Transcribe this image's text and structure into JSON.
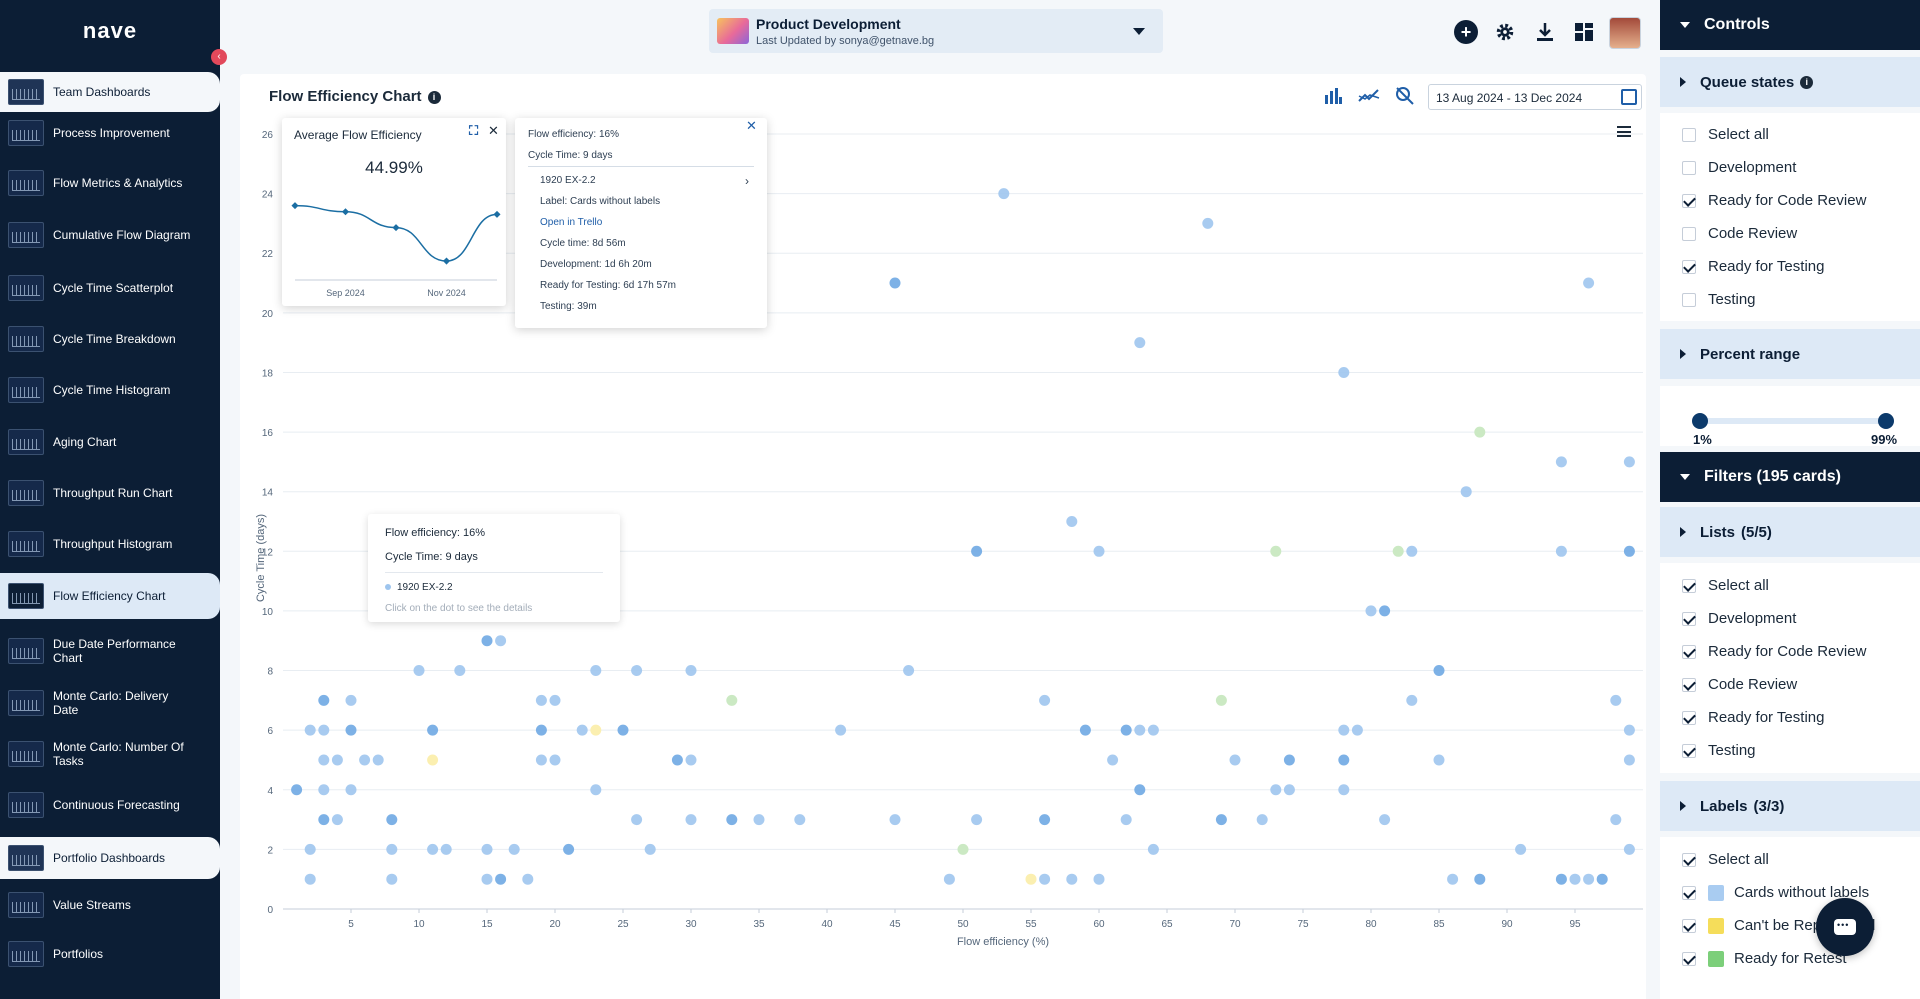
{
  "app": {
    "logo": "nave",
    "collapse_icon": "chevron-left-icon"
  },
  "sidebar": {
    "items": [
      {
        "label": "Team Dashboards",
        "kind": "section"
      },
      {
        "label": "Process Improvement"
      },
      {
        "label": "Flow Metrics & Analytics"
      },
      {
        "label": "Cumulative Flow Diagram"
      },
      {
        "label": "Cycle Time Scatterplot"
      },
      {
        "label": "Cycle Time Breakdown"
      },
      {
        "label": "Cycle Time Histogram"
      },
      {
        "label": "Aging Chart"
      },
      {
        "label": "Throughput Run Chart"
      },
      {
        "label": "Throughput Histogram"
      },
      {
        "label": "Flow Efficiency Chart",
        "kind": "active"
      },
      {
        "label": "Due Date Performance Chart"
      },
      {
        "label": "Monte Carlo: Delivery Date"
      },
      {
        "label": "Monte Carlo: Number Of Tasks"
      },
      {
        "label": "Continuous Forecasting"
      },
      {
        "label": "Portfolio Dashboards",
        "kind": "section"
      },
      {
        "label": "Value Streams"
      },
      {
        "label": "Portfolios"
      }
    ]
  },
  "header": {
    "board_title": "Product Development",
    "board_subtitle": "Last Updated by sonya@getnave.bg",
    "icons": [
      "add-icon",
      "settings-icon",
      "download-icon",
      "dashboard-layout-icon"
    ]
  },
  "main": {
    "title": "Flow Efficiency Chart",
    "date_range": "13 Aug 2024 - 13 Dec 2024",
    "toolbar_icons": [
      "bar-chart-icon",
      "trend-line-icon",
      "zoom-reset-icon",
      "calendar-icon"
    ]
  },
  "avg_popup": {
    "title": "Average Flow Efficiency",
    "value": "44.99%",
    "x_labels": [
      "Sep 2024",
      "Nov 2024"
    ],
    "points": [
      {
        "x": 0,
        "y": 0.2
      },
      {
        "x": 1,
        "y": 0.27
      },
      {
        "x": 2,
        "y": 0.45
      },
      {
        "x": 3,
        "y": 0.83
      },
      {
        "x": 4,
        "y": 0.3
      }
    ]
  },
  "detail_popup": {
    "flow_eff": "Flow efficiency: 16%",
    "cycle_time": "Cycle Time: 9 days",
    "card_id": "1920 EX-2.2",
    "label": "Label: Cards without labels",
    "open_link": "Open in Trello",
    "cycle_detail": "Cycle time: 8d 56m",
    "development": "Development: 1d 6h 20m",
    "ready_testing": "Ready for Testing: 6d 17h 57m",
    "testing": "Testing: 39m"
  },
  "hover_tip": {
    "flow_eff": "Flow efficiency: 16%",
    "cycle_time": "Cycle Time: 9 days",
    "card_id": "1920 EX-2.2",
    "hint": "Click on the dot to see the details"
  },
  "chart_data": {
    "type": "scatter",
    "xlabel": "Flow efficiency (%)",
    "ylabel": "Cycle Time (days)",
    "xlim": [
      0,
      100
    ],
    "ylim": [
      0,
      26
    ],
    "x_ticks": [
      5,
      10,
      15,
      20,
      25,
      30,
      35,
      40,
      45,
      50,
      55,
      60,
      65,
      70,
      75,
      80,
      85,
      90,
      95
    ],
    "y_ticks": [
      0,
      2,
      4,
      6,
      8,
      10,
      12,
      14,
      16,
      18,
      20,
      22,
      24,
      26
    ],
    "colors": {
      "blue": "#9ec5ee",
      "blue_dark": "#6fa8e3",
      "green": "#cbe9c3",
      "yellow": "#fbefb0"
    },
    "points": [
      [
        1,
        4
      ],
      [
        2,
        6
      ],
      [
        2,
        2
      ],
      [
        2,
        1
      ],
      [
        3,
        7
      ],
      [
        3,
        6
      ],
      [
        3,
        5
      ],
      [
        3,
        4
      ],
      [
        3,
        3
      ],
      [
        4,
        5
      ],
      [
        4,
        3
      ],
      [
        5,
        7
      ],
      [
        5,
        6
      ],
      [
        5,
        4
      ],
      [
        6,
        5
      ],
      [
        7,
        5
      ],
      [
        8,
        3
      ],
      [
        8,
        2
      ],
      [
        8,
        1
      ],
      [
        10,
        8
      ],
      [
        11,
        6
      ],
      [
        11,
        2
      ],
      [
        12,
        2
      ],
      [
        13,
        8
      ],
      [
        15,
        9
      ],
      [
        15,
        2
      ],
      [
        15,
        1
      ],
      [
        16,
        9
      ],
      [
        16,
        1
      ],
      [
        17,
        2
      ],
      [
        18,
        1
      ],
      [
        19,
        7
      ],
      [
        19,
        6
      ],
      [
        19,
        5
      ],
      [
        20,
        7
      ],
      [
        20,
        5
      ],
      [
        21,
        2
      ],
      [
        22,
        6
      ],
      [
        23,
        8
      ],
      [
        23,
        4
      ],
      [
        25,
        6
      ],
      [
        26,
        8
      ],
      [
        26,
        3
      ],
      [
        27,
        2
      ],
      [
        29,
        5
      ],
      [
        30,
        8
      ],
      [
        30,
        5
      ],
      [
        30,
        3
      ],
      [
        33,
        3
      ],
      [
        35,
        3
      ],
      [
        38,
        3
      ],
      [
        41,
        6
      ],
      [
        45,
        21
      ],
      [
        45,
        3
      ],
      [
        46,
        8
      ],
      [
        49,
        1
      ],
      [
        51,
        12
      ],
      [
        51,
        3
      ],
      [
        53,
        24
      ],
      [
        56,
        7
      ],
      [
        56,
        3
      ],
      [
        56,
        1
      ],
      [
        58,
        13
      ],
      [
        58,
        1
      ],
      [
        59,
        6
      ],
      [
        60,
        12
      ],
      [
        60,
        1
      ],
      [
        61,
        5
      ],
      [
        62,
        6
      ],
      [
        62,
        3
      ],
      [
        63,
        19
      ],
      [
        63,
        6
      ],
      [
        63,
        4
      ],
      [
        64,
        6
      ],
      [
        64,
        2
      ],
      [
        68,
        23
      ],
      [
        69,
        3
      ],
      [
        70,
        5
      ],
      [
        72,
        3
      ],
      [
        73,
        4
      ],
      [
        74,
        5
      ],
      [
        74,
        4
      ],
      [
        78,
        18
      ],
      [
        78,
        6
      ],
      [
        78,
        5
      ],
      [
        78,
        4
      ],
      [
        79,
        6
      ],
      [
        80,
        10
      ],
      [
        81,
        10
      ],
      [
        81,
        3
      ],
      [
        83,
        12
      ],
      [
        83,
        7
      ],
      [
        85,
        8
      ],
      [
        85,
        5
      ],
      [
        86,
        1
      ],
      [
        87,
        14
      ],
      [
        88,
        1
      ],
      [
        91,
        2
      ],
      [
        94,
        15
      ],
      [
        94,
        12
      ],
      [
        94,
        1
      ],
      [
        95,
        1
      ],
      [
        96,
        21
      ],
      [
        96,
        1
      ],
      [
        97,
        1
      ],
      [
        98,
        7
      ],
      [
        98,
        3
      ],
      [
        99,
        15
      ],
      [
        99,
        12
      ],
      [
        99,
        6
      ],
      [
        99,
        5
      ],
      [
        99,
        2
      ]
    ],
    "green_points": [
      [
        33,
        7
      ],
      [
        50,
        2
      ],
      [
        69,
        7
      ],
      [
        73,
        12
      ],
      [
        82,
        12
      ],
      [
        88,
        16
      ]
    ],
    "yellow_points": [
      [
        11,
        5
      ],
      [
        23,
        6
      ],
      [
        55,
        1
      ]
    ]
  },
  "controls": {
    "title": "Controls",
    "queue_title": "Queue states",
    "queue_states": [
      {
        "label": "Select all",
        "checked": false
      },
      {
        "label": "Development",
        "checked": false
      },
      {
        "label": "Ready for Code Review",
        "checked": true
      },
      {
        "label": "Code Review",
        "checked": false
      },
      {
        "label": "Ready for Testing",
        "checked": true
      },
      {
        "label": "Testing",
        "checked": false
      }
    ],
    "percent_title": "Percent range",
    "range_min": "1%",
    "range_max": "99%",
    "filters_title": "Filters (195 cards)",
    "lists_title": "Lists",
    "lists_count": "(5/5)",
    "lists": [
      {
        "label": "Select all",
        "checked": true
      },
      {
        "label": "Development",
        "checked": true
      },
      {
        "label": "Ready for Code Review",
        "checked": true
      },
      {
        "label": "Code Review",
        "checked": true
      },
      {
        "label": "Ready for Testing",
        "checked": true
      },
      {
        "label": "Testing",
        "checked": true
      }
    ],
    "labels_title": "Labels",
    "labels_count": "(3/3)",
    "labels": [
      {
        "label": "Select all",
        "checked": true,
        "color": ""
      },
      {
        "label": "Cards without labels",
        "checked": true,
        "color": "#a9ccf1"
      },
      {
        "label": "Can't be Reproduced",
        "checked": true,
        "color": "#f5dd5a"
      },
      {
        "label": "Ready for Retest",
        "checked": true,
        "color": "#7ccf7a"
      }
    ]
  }
}
